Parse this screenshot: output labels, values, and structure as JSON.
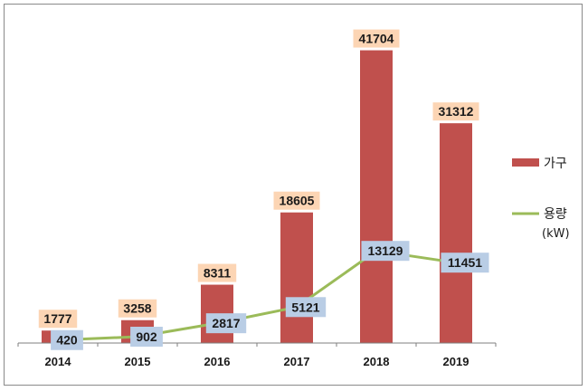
{
  "chart_data": {
    "type": "bar",
    "categories": [
      "2014",
      "2015",
      "2016",
      "2017",
      "2018",
      "2019"
    ],
    "series": [
      {
        "name": "가구",
        "kind": "bar",
        "color": "#c0504d",
        "label_bg": "#fcd5b4",
        "values": [
          1777,
          3258,
          8311,
          18605,
          41704,
          31312
        ]
      },
      {
        "name": "용량",
        "unit": "(kW)",
        "kind": "line",
        "color": "#9bbb59",
        "label_bg": "#b9cde5",
        "values": [
          420,
          902,
          2817,
          5121,
          13129,
          11451
        ]
      }
    ],
    "ylim": [
      0,
      45000
    ],
    "grid": false,
    "legend_position": "right"
  }
}
